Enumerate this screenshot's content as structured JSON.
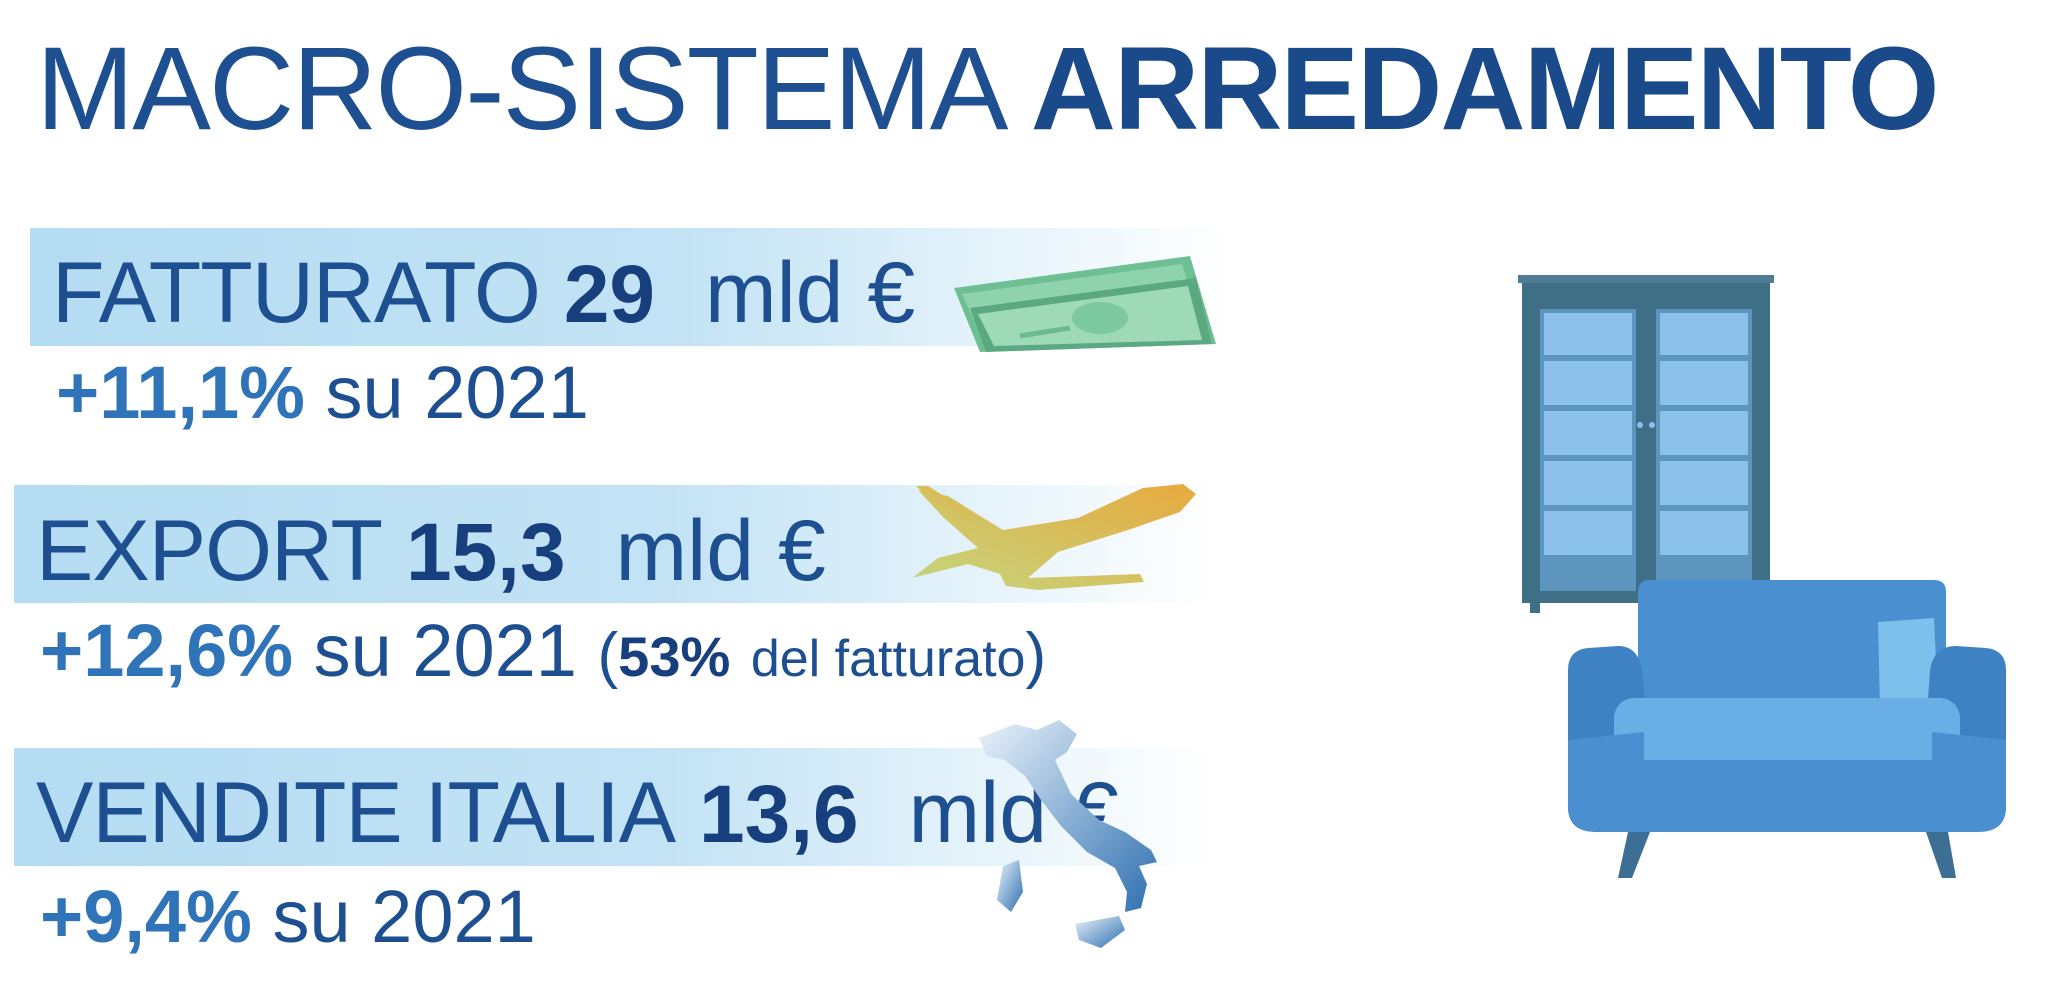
{
  "title": {
    "light": "MACRO-SISTEMA",
    "bold": "ARREDAMENTO"
  },
  "rows": [
    {
      "label": "FATTURATO",
      "value": "29",
      "unit": "mld €",
      "change": "+11,1%",
      "change_text": "su 2021",
      "icon": "banknotes-icon"
    },
    {
      "label": "EXPORT",
      "value": "15,3",
      "unit": "mld €",
      "change": "+12,6%",
      "change_text": "su 2021",
      "paren_open": "(",
      "share": "53%",
      "share_text": "del fatturato",
      "paren_close": ")",
      "icon": "airplane-icon"
    },
    {
      "label": "VENDITE ITALIA",
      "value": "13,6",
      "unit": "mld €",
      "change": "+9,4%",
      "change_text": "su 2021",
      "icon": "italy-map-icon"
    }
  ],
  "illustration": {
    "icons": [
      "cabinet-icon",
      "sofa-icon"
    ]
  },
  "colors": {
    "title": "#1d4f91",
    "band": "#b4dcf2",
    "percent": "#2f74b8",
    "sofa": "#4a8fd0",
    "cabinet": "#3f6f86"
  }
}
